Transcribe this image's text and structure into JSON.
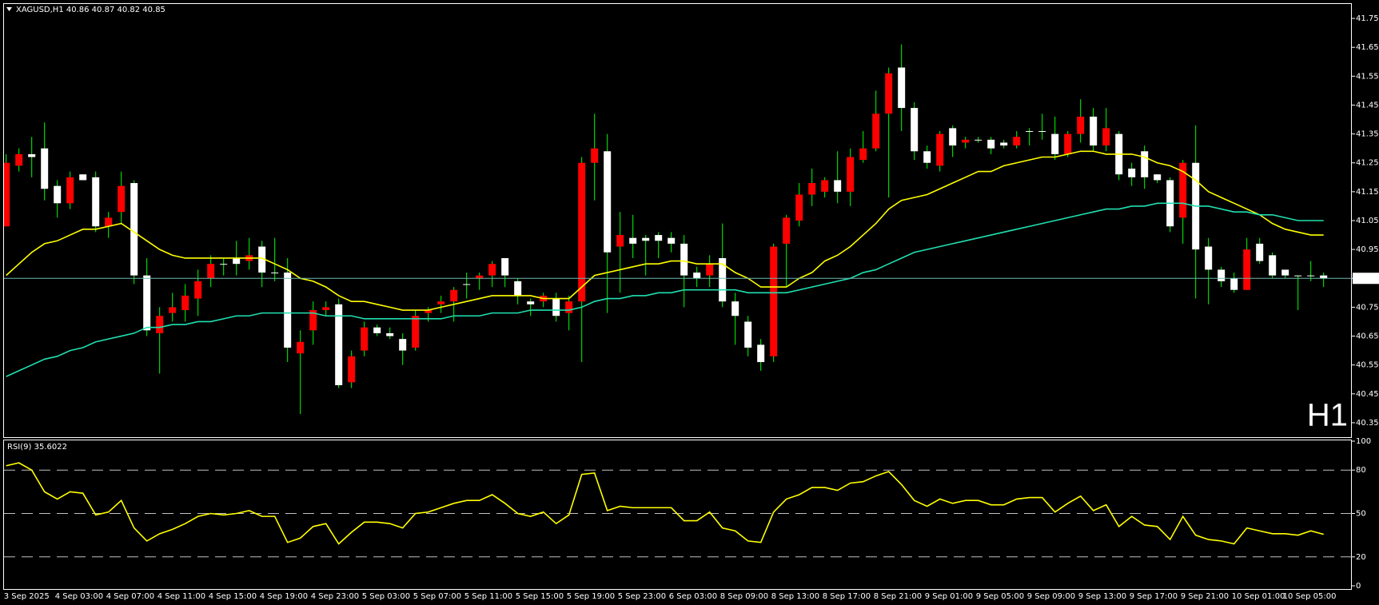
{
  "chart_data": [
    {
      "type": "candlestick",
      "title": "XAGUSD,H1  40.86 40.87 40.82 40.85",
      "watermark": "H1",
      "watermark_color": "#e00000",
      "categories": [
        "3 Sep 2025",
        null,
        null,
        null,
        "4 Sep 03:00",
        null,
        null,
        null,
        "4 Sep 07:00",
        null,
        null,
        null,
        "4 Sep 11:00",
        null,
        null,
        null,
        "4 Sep 15:00",
        null,
        null,
        null,
        "4 Sep 19:00",
        null,
        null,
        null,
        "4 Sep 23:00",
        null,
        null,
        null,
        "5 Sep 03:00",
        null,
        null,
        null,
        "5 Sep 07:00",
        null,
        null,
        null,
        "5 Sep 11:00",
        null,
        null,
        null,
        "5 Sep 15:00",
        null,
        null,
        null,
        "5 Sep 19:00",
        null,
        null,
        null,
        "5 Sep 23:00",
        null,
        null,
        null,
        "6 Sep 03:00",
        null,
        null,
        null,
        "8 Sep 09:00",
        null,
        null,
        null,
        "8 Sep 13:00",
        null,
        null,
        null,
        "8 Sep 17:00",
        null,
        null,
        null,
        "8 Sep 21:00",
        null,
        null,
        null,
        "9 Sep 01:00",
        null,
        null,
        null,
        "9 Sep 05:00",
        null,
        null,
        null,
        "9 Sep 09:00",
        null,
        null,
        null,
        "9 Sep 13:00",
        null,
        null,
        null,
        "9 Sep 17:00",
        null,
        null,
        null,
        "9 Sep 21:00",
        null,
        null,
        null,
        "10 Sep 01:00",
        null,
        null,
        null,
        "10 Sep 05:00",
        null,
        null,
        null
      ],
      "open": [
        41.03,
        41.24,
        41.28,
        41.3,
        41.17,
        41.11,
        41.21,
        41.2,
        41.03,
        41.08,
        41.18,
        40.86,
        40.66,
        40.73,
        40.74,
        40.78,
        40.85,
        40.9,
        40.92,
        40.91,
        40.96,
        40.87,
        40.87,
        40.59,
        40.67,
        40.74,
        40.76,
        40.49,
        40.6,
        40.68,
        40.66,
        40.64,
        40.61,
        40.73,
        40.76,
        40.77,
        40.83,
        40.85,
        40.86,
        40.92,
        40.84,
        40.77,
        40.77,
        40.78,
        40.73,
        40.77,
        41.25,
        41.29,
        40.96,
        40.99,
        40.99,
        41.0,
        40.99,
        40.97,
        40.87,
        40.86,
        40.92,
        40.77,
        40.7,
        40.62,
        40.58,
        40.97,
        41.05,
        41.14,
        41.15,
        41.19,
        41.15,
        41.26,
        41.3,
        41.42,
        41.58,
        41.44,
        41.29,
        41.24,
        41.37,
        41.32,
        41.33,
        41.33,
        41.32,
        41.31,
        41.36,
        41.36,
        41.35,
        41.28,
        41.35,
        41.41,
        41.31,
        41.35,
        41.23,
        41.29,
        41.21,
        41.19,
        41.06,
        41.25,
        40.96,
        40.88,
        40.85,
        40.81,
        40.97,
        40.93,
        40.88,
        40.86,
        40.86,
        40.86
      ],
      "high": [
        41.28,
        41.3,
        41.34,
        41.39,
        41.19,
        41.22,
        41.21,
        41.22,
        41.08,
        41.22,
        41.19,
        40.92,
        40.75,
        40.8,
        40.83,
        40.88,
        40.93,
        40.92,
        40.98,
        40.99,
        40.98,
        40.99,
        40.92,
        40.67,
        40.77,
        40.77,
        40.78,
        40.6,
        40.7,
        40.69,
        40.68,
        40.66,
        40.74,
        40.75,
        40.79,
        40.82,
        40.87,
        40.87,
        40.91,
        40.92,
        40.85,
        40.78,
        40.8,
        40.8,
        40.79,
        41.27,
        41.42,
        41.35,
        41.08,
        41.07,
        41.0,
        41.01,
        41.01,
        41.0,
        40.89,
        40.93,
        41.04,
        40.8,
        40.72,
        40.64,
        40.97,
        41.07,
        41.18,
        41.23,
        41.2,
        41.29,
        41.3,
        41.36,
        41.5,
        41.58,
        41.66,
        41.46,
        41.31,
        41.36,
        41.38,
        41.34,
        41.34,
        41.34,
        41.33,
        41.36,
        41.37,
        41.42,
        41.41,
        41.36,
        41.47,
        41.44,
        41.44,
        41.36,
        41.25,
        41.31,
        41.21,
        41.2,
        41.26,
        41.38,
        40.99,
        40.89,
        40.87,
        40.99,
        40.99,
        40.94,
        40.88,
        40.86,
        40.91,
        40.87
      ],
      "low": [
        41.03,
        41.22,
        41.2,
        41.12,
        41.06,
        41.09,
        41.19,
        41.01,
        40.99,
        41.04,
        40.83,
        40.65,
        40.52,
        40.7,
        40.7,
        40.72,
        40.82,
        40.86,
        40.86,
        40.88,
        40.82,
        40.84,
        40.56,
        40.38,
        40.62,
        40.72,
        40.47,
        40.47,
        40.58,
        40.65,
        40.64,
        40.55,
        40.6,
        40.7,
        40.73,
        40.7,
        40.78,
        40.81,
        40.82,
        40.82,
        40.76,
        40.72,
        40.75,
        40.7,
        40.67,
        40.56,
        41.12,
        40.73,
        40.8,
        40.92,
        40.86,
        40.92,
        40.94,
        40.75,
        40.82,
        40.82,
        40.75,
        40.62,
        40.58,
        40.53,
        40.56,
        40.82,
        41.03,
        41.1,
        41.13,
        41.11,
        41.1,
        41.25,
        41.29,
        41.13,
        41.36,
        41.26,
        41.23,
        41.22,
        41.27,
        41.3,
        41.32,
        41.28,
        41.3,
        41.3,
        41.31,
        41.33,
        41.26,
        41.27,
        41.32,
        41.29,
        41.29,
        41.19,
        41.17,
        41.16,
        41.18,
        41.01,
        40.97,
        40.78,
        40.76,
        40.82,
        40.8,
        40.81,
        40.9,
        40.85,
        40.85,
        40.74,
        40.84,
        40.82
      ],
      "close": [
        41.25,
        41.28,
        41.27,
        41.16,
        41.11,
        41.2,
        41.19,
        41.03,
        41.06,
        41.17,
        40.86,
        40.67,
        40.72,
        40.75,
        40.79,
        40.84,
        40.9,
        40.9,
        40.9,
        40.93,
        40.87,
        40.87,
        40.61,
        40.63,
        40.74,
        40.75,
        40.48,
        40.58,
        40.68,
        40.66,
        40.65,
        40.6,
        40.72,
        40.74,
        40.77,
        40.81,
        40.83,
        40.86,
        40.9,
        40.86,
        40.79,
        40.76,
        40.79,
        40.72,
        40.77,
        41.25,
        41.3,
        40.94,
        41.0,
        40.97,
        40.98,
        40.98,
        40.97,
        40.86,
        40.85,
        40.9,
        40.77,
        40.72,
        40.61,
        40.56,
        40.96,
        41.06,
        41.14,
        41.18,
        41.19,
        41.15,
        41.27,
        41.3,
        41.42,
        41.56,
        41.44,
        41.29,
        41.25,
        41.35,
        41.31,
        41.33,
        41.33,
        41.3,
        41.31,
        41.34,
        41.36,
        41.36,
        41.28,
        41.35,
        41.41,
        41.31,
        41.37,
        41.21,
        41.2,
        41.2,
        41.19,
        41.03,
        41.25,
        40.95,
        40.88,
        40.84,
        40.81,
        40.95,
        40.91,
        40.86,
        40.86,
        40.86,
        40.86,
        40.85
      ],
      "up_color": "#ff0000",
      "down_color": "#ffffff",
      "wick_color": "#00ff00",
      "lines": [
        {
          "color": "#ffff00",
          "values": [
            40.86,
            40.9,
            40.94,
            40.97,
            40.98,
            41.0,
            41.02,
            41.02,
            41.03,
            41.04,
            41.01,
            40.98,
            40.95,
            40.93,
            40.92,
            40.92,
            40.92,
            40.92,
            40.92,
            40.92,
            40.92,
            40.9,
            40.88,
            40.85,
            40.84,
            40.82,
            40.79,
            40.77,
            40.77,
            40.76,
            40.75,
            40.74,
            40.74,
            40.74,
            40.75,
            40.76,
            40.77,
            40.78,
            40.79,
            40.79,
            40.79,
            40.79,
            40.78,
            40.78,
            40.78,
            40.82,
            40.86,
            40.87,
            40.88,
            40.89,
            40.9,
            40.9,
            40.91,
            40.91,
            40.9,
            40.9,
            40.9,
            40.87,
            40.85,
            40.82,
            40.82,
            40.82,
            40.85,
            40.87,
            40.91,
            40.93,
            40.96,
            41.0,
            41.04,
            41.09,
            41.12,
            41.13,
            41.14,
            41.16,
            41.18,
            41.2,
            41.22,
            41.22,
            41.24,
            41.25,
            41.26,
            41.27,
            41.27,
            41.28,
            41.29,
            41.29,
            41.28,
            41.28,
            41.28,
            41.27,
            41.25,
            41.24,
            41.22,
            41.19,
            41.15,
            41.13,
            41.11,
            41.09,
            41.07,
            41.04,
            41.02,
            41.01,
            41.0,
            41.0
          ]
        },
        {
          "color": "#20e0b0",
          "values": [
            40.51,
            40.53,
            40.55,
            40.57,
            40.58,
            40.6,
            40.61,
            40.63,
            40.64,
            40.65,
            40.66,
            40.68,
            40.68,
            40.69,
            40.69,
            40.7,
            40.7,
            40.71,
            40.72,
            40.72,
            40.73,
            40.73,
            40.73,
            40.73,
            40.73,
            40.72,
            40.72,
            40.72,
            40.71,
            40.71,
            40.71,
            40.71,
            40.71,
            40.71,
            40.71,
            40.72,
            40.72,
            40.72,
            40.73,
            40.73,
            40.73,
            40.74,
            40.74,
            40.74,
            40.74,
            40.75,
            40.77,
            40.78,
            40.78,
            40.79,
            40.79,
            40.8,
            40.8,
            40.81,
            40.81,
            40.81,
            40.81,
            40.81,
            40.8,
            40.8,
            40.8,
            40.8,
            40.81,
            40.82,
            40.83,
            40.84,
            40.85,
            40.87,
            40.88,
            40.9,
            40.92,
            40.94,
            40.95,
            40.96,
            40.97,
            40.98,
            40.99,
            41.0,
            41.01,
            41.02,
            41.03,
            41.04,
            41.05,
            41.06,
            41.07,
            41.08,
            41.09,
            41.09,
            41.1,
            41.1,
            41.11,
            41.11,
            41.11,
            41.1,
            41.1,
            41.09,
            41.08,
            41.08,
            41.07,
            41.07,
            41.06,
            41.05,
            41.05,
            41.05
          ]
        }
      ],
      "current_price": 40.85,
      "current_price_color": "#6fb8b0",
      "ylim": [
        40.3,
        41.8
      ],
      "yticks": [
        40.35,
        40.45,
        40.55,
        40.65,
        40.75,
        40.85,
        40.95,
        41.05,
        41.15,
        41.25,
        41.35,
        41.45,
        41.55,
        41.65,
        41.75
      ]
    },
    {
      "type": "line",
      "title": "RSI(9) 35.6022",
      "color": "#ffff00",
      "values": [
        83,
        85,
        80,
        65,
        60,
        65,
        64,
        49,
        51,
        59,
        40,
        31,
        36,
        39,
        43,
        48,
        50,
        49,
        50,
        52,
        48,
        48,
        30,
        33,
        41,
        43,
        29,
        37,
        44,
        44,
        43,
        40,
        50,
        51,
        54,
        57,
        59,
        59,
        63,
        57,
        50,
        48,
        51,
        43,
        49,
        77,
        78,
        52,
        55,
        54,
        54,
        54,
        54,
        45,
        45,
        51,
        40,
        38,
        31,
        30,
        51,
        60,
        63,
        68,
        68,
        66,
        71,
        72,
        76,
        79,
        70,
        59,
        55,
        60,
        57,
        59,
        59,
        56,
        56,
        60,
        61,
        61,
        51,
        57,
        62,
        52,
        56,
        41,
        48,
        42,
        41,
        32,
        48,
        35,
        32,
        31,
        29,
        40,
        38,
        36,
        36,
        35,
        38,
        35.6
      ],
      "ylim": [
        0,
        100
      ],
      "yticks": [
        0,
        20,
        50,
        80,
        100
      ],
      "levels": [
        20,
        50,
        80
      ],
      "level_color": "#c0c0c0"
    }
  ]
}
